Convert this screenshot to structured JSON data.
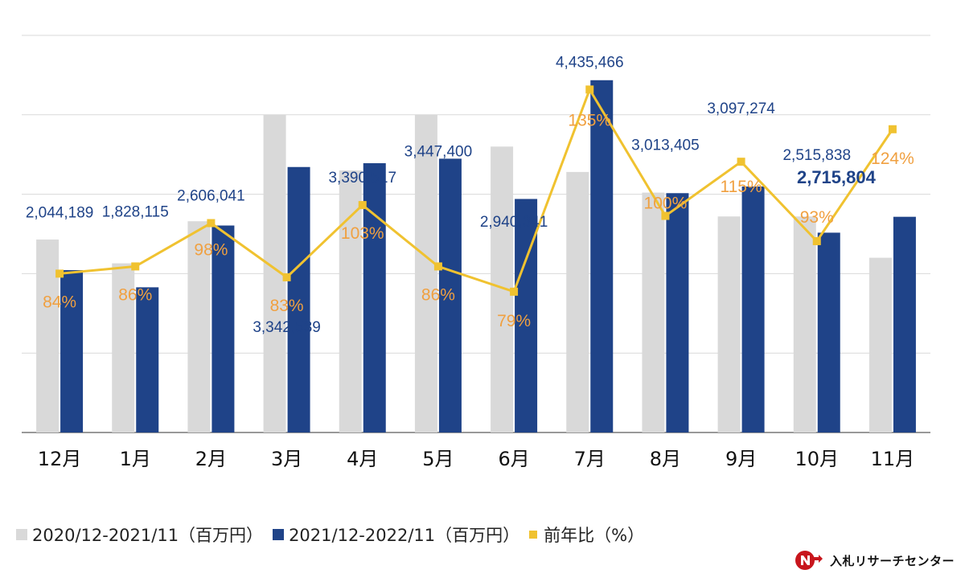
{
  "chart_data": {
    "type": "bar",
    "categories": [
      "12月",
      "1月",
      "2月",
      "3月",
      "4月",
      "5月",
      "6月",
      "7月",
      "8月",
      "9月",
      "10月",
      "11月"
    ],
    "series": [
      {
        "name": "2020/12-2021/11（百万円）",
        "type": "bar",
        "color": "#d9d9d9",
        "values": [
          2430000,
          2130000,
          2660000,
          4000000,
          3300000,
          4000000,
          3600000,
          3280000,
          3020000,
          2720000,
          2720000,
          2200000
        ]
      },
      {
        "name": "2021/12-2022/11（百万円）",
        "type": "bar",
        "color": "#1f4388",
        "values": [
          2044189,
          1828115,
          2606041,
          3342539,
          3390517,
          3447400,
          2940341,
          4435466,
          3013405,
          3097274,
          2515838,
          2715804
        ],
        "labels": [
          "2,044,189",
          "1,828,115",
          "2,606,041",
          "3,342,539",
          "3,390,517",
          "3,447,400",
          "2,940,341",
          "4,435,466",
          "3,013,405",
          "3,097,274",
          "2,515,838",
          "2,715,804"
        ]
      },
      {
        "name": "前年比（%）",
        "type": "line",
        "color": "#f0c230",
        "values": [
          84,
          86,
          98,
          83,
          103,
          86,
          79,
          135,
          100,
          115,
          93,
          124
        ],
        "labels": [
          "84%",
          "86%",
          "98%",
          "83%",
          "103%",
          "86%",
          "79%",
          "135%",
          "100%",
          "115%",
          "93%",
          "124%"
        ]
      }
    ],
    "ylim": [
      0,
      5000000
    ],
    "ratio_ylim": [
      40,
      150
    ],
    "grid": true,
    "legend": "bottom",
    "colors": {
      "value_label": "#1f4388",
      "ratio_label": "#f0a040",
      "grid": "#d9d9d9",
      "axis": "#333333"
    }
  },
  "logo": {
    "text": "入札リサーチセンター",
    "icon": "n-arrow-logo-icon"
  }
}
